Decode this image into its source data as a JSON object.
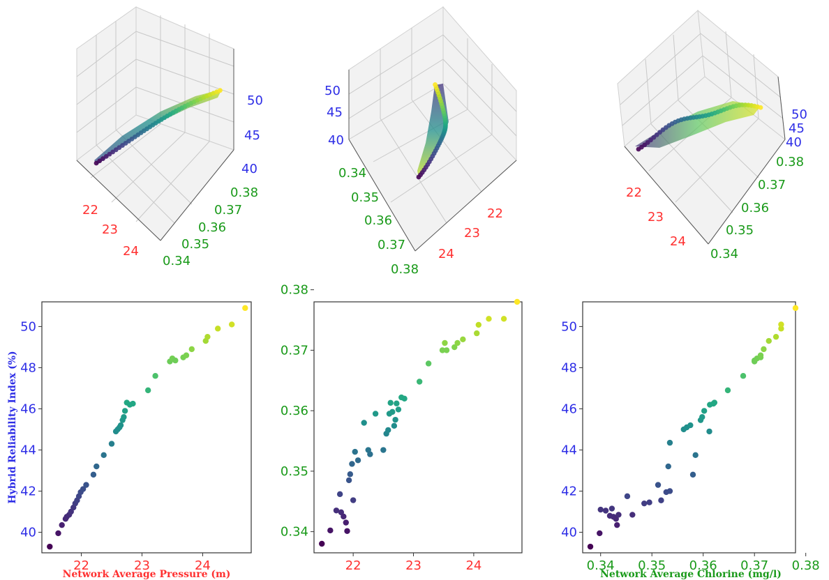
{
  "colors": {
    "pressure": "#ff3030",
    "chlorine": "#1a9a1a",
    "reliability": "#2e2ee6",
    "colormap": "viridis"
  },
  "chart_data": [
    {
      "type": "scatter",
      "panel": "3d-top-left",
      "x_ticks": [
        "22",
        "23",
        "24"
      ],
      "y_ticks": [
        "0.38",
        "0.37",
        "0.36",
        "0.35",
        "0.34"
      ],
      "z_ticks": [
        "50",
        "45",
        "40"
      ]
    },
    {
      "type": "scatter",
      "panel": "3d-top-middle",
      "x_ticks": [
        "22",
        "23",
        "24"
      ],
      "y_ticks": [
        "0.34",
        "0.35",
        "0.36",
        "0.37",
        "0.38"
      ],
      "z_ticks": [
        "50",
        "45",
        "40"
      ]
    },
    {
      "type": "scatter",
      "panel": "3d-top-right",
      "x_ticks": [
        "22",
        "23",
        "24"
      ],
      "y_ticks": [
        "0.38",
        "0.37",
        "0.36",
        "0.35",
        "0.34"
      ],
      "z_ticks": [
        "50",
        "45",
        "40"
      ]
    },
    {
      "type": "scatter",
      "panel": "bottom-left",
      "xlabel": "Network Average Pressure (m)",
      "ylabel": "Hybrid Reliability Index (%)",
      "xlim": [
        21.35,
        24.8
      ],
      "ylim": [
        39.0,
        51.2
      ],
      "x_ticks": [
        "22",
        "23",
        "24"
      ],
      "y_ticks": [
        "40",
        "42",
        "44",
        "46",
        "48",
        "50"
      ],
      "x": [
        21.48,
        21.62,
        21.68,
        21.74,
        21.76,
        21.8,
        21.83,
        21.87,
        21.9,
        21.93,
        21.96,
        21.99,
        22.03,
        22.08,
        22.2,
        22.25,
        22.37,
        22.5,
        22.57,
        22.6,
        22.63,
        22.65,
        22.68,
        22.7,
        22.72,
        22.75,
        22.8,
        22.85,
        23.1,
        23.22,
        23.46,
        23.5,
        23.55,
        23.68,
        23.73,
        23.82,
        24.05,
        24.08,
        24.25,
        24.48,
        24.7
      ],
      "y": [
        39.3,
        39.95,
        40.35,
        40.65,
        40.75,
        40.85,
        41.0,
        41.2,
        41.4,
        41.55,
        41.75,
        41.95,
        42.1,
        42.3,
        42.8,
        43.2,
        43.75,
        44.3,
        44.9,
        45.0,
        45.1,
        45.2,
        45.45,
        45.6,
        45.9,
        46.3,
        46.2,
        46.25,
        46.9,
        47.6,
        48.3,
        48.45,
        48.35,
        48.5,
        48.6,
        48.9,
        49.3,
        49.5,
        49.9,
        50.1,
        50.9
      ]
    },
    {
      "type": "scatter",
      "panel": "bottom-middle",
      "xlim": [
        21.35,
        24.8
      ],
      "ylim": [
        0.3365,
        0.378
      ],
      "x_ticks": [
        "22",
        "23",
        "24"
      ],
      "y_ticks": [
        "0.34",
        "0.35",
        "0.36",
        "0.37",
        "0.38"
      ],
      "x": [
        21.48,
        21.62,
        21.72,
        21.78,
        21.8,
        21.84,
        21.88,
        21.9,
        21.93,
        21.95,
        21.98,
        22.0,
        22.03,
        22.08,
        22.18,
        22.25,
        22.28,
        22.37,
        22.5,
        22.55,
        22.58,
        22.6,
        22.62,
        22.65,
        22.68,
        22.7,
        22.72,
        22.75,
        22.8,
        22.85,
        23.1,
        23.25,
        23.48,
        23.52,
        23.55,
        23.68,
        23.73,
        23.82,
        24.05,
        24.08,
        24.25,
        24.5,
        24.72
      ],
      "y": [
        0.338,
        0.3402,
        0.3435,
        0.3462,
        0.3432,
        0.3425,
        0.3415,
        0.3401,
        0.3485,
        0.3495,
        0.3512,
        0.3452,
        0.3532,
        0.3518,
        0.358,
        0.3535,
        0.3528,
        0.3595,
        0.3535,
        0.3562,
        0.3568,
        0.3595,
        0.3613,
        0.3598,
        0.3575,
        0.3585,
        0.3612,
        0.3602,
        0.3622,
        0.362,
        0.3648,
        0.3678,
        0.37,
        0.3712,
        0.37,
        0.3705,
        0.3712,
        0.3718,
        0.3728,
        0.3742,
        0.3752,
        0.3752,
        0.378
      ]
    },
    {
      "type": "scatter",
      "panel": "bottom-right",
      "xlabel": "Network Average Chlorine (mg/l)",
      "xlim": [
        0.3365,
        0.378
      ],
      "ylim": [
        39.0,
        51.2
      ],
      "x_ticks": [
        "0.34",
        "0.35",
        "0.36",
        "0.37",
        "0.38"
      ],
      "y_ticks": [
        "40",
        "42",
        "44",
        "46",
        "48",
        "50"
      ],
      "x": [
        0.338,
        0.3398,
        0.34,
        0.341,
        0.3418,
        0.3422,
        0.3425,
        0.343,
        0.3432,
        0.3435,
        0.3452,
        0.3462,
        0.3485,
        0.3495,
        0.3512,
        0.3518,
        0.3528,
        0.3532,
        0.3535,
        0.3535,
        0.3562,
        0.3568,
        0.3575,
        0.358,
        0.3585,
        0.3595,
        0.3598,
        0.3602,
        0.3612,
        0.3613,
        0.362,
        0.3622,
        0.3648,
        0.3678,
        0.37,
        0.37,
        0.3705,
        0.3712,
        0.3712,
        0.3718,
        0.3728,
        0.3742,
        0.3752,
        0.3752,
        0.378
      ],
      "y": [
        39.3,
        39.95,
        41.1,
        41.05,
        40.8,
        41.15,
        40.75,
        40.65,
        40.35,
        40.85,
        41.75,
        40.85,
        41.4,
        41.45,
        42.3,
        41.55,
        41.95,
        43.2,
        44.35,
        42.0,
        45.0,
        45.1,
        45.2,
        42.8,
        43.75,
        45.45,
        45.6,
        45.9,
        44.9,
        46.2,
        46.25,
        46.3,
        46.9,
        47.6,
        48.3,
        48.35,
        48.45,
        48.5,
        48.6,
        48.9,
        49.3,
        49.5,
        49.9,
        50.1,
        50.9
      ]
    }
  ]
}
